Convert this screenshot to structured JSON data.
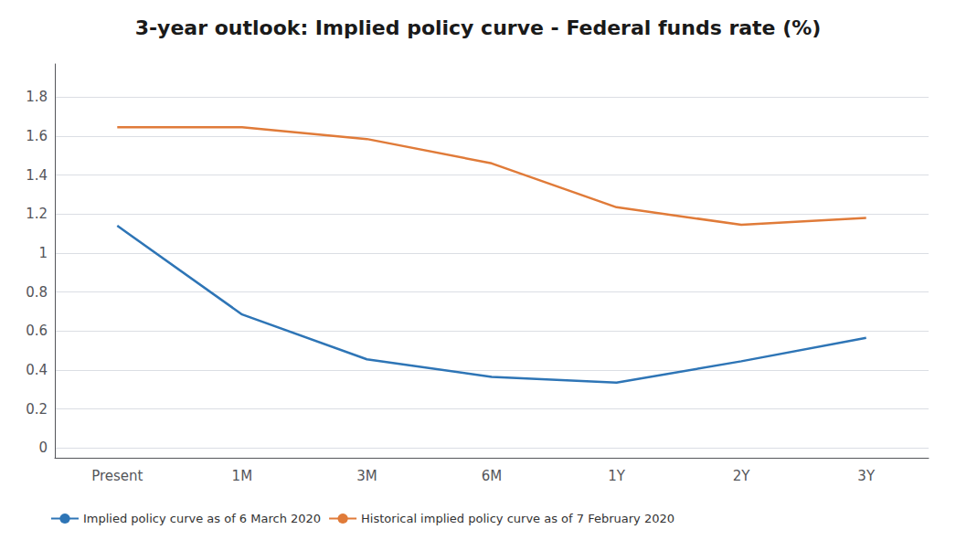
{
  "chart_data": {
    "type": "line",
    "title": "3-year outlook: Implied policy curve - Federal funds rate (%)",
    "categories": [
      "Present",
      "1M",
      "3M",
      "6M",
      "1Y",
      "2Y",
      "3Y"
    ],
    "series": [
      {
        "name": "Implied policy curve as of 6 March 2020",
        "color": "#2e75b6",
        "values": [
          1.14,
          0.685,
          0.455,
          0.365,
          0.335,
          0.445,
          0.565
        ]
      },
      {
        "name": "Historical implied policy curve as of 7 February 2020",
        "color": "#e07b39",
        "values": [
          1.645,
          1.645,
          1.585,
          1.46,
          1.235,
          1.145,
          1.18
        ]
      }
    ],
    "ylim": [
      -0.05,
      1.97
    ],
    "yticks": [
      0,
      0.2,
      0.4,
      0.6,
      0.8,
      1,
      1.2,
      1.4,
      1.6,
      1.8
    ],
    "grid": true,
    "legend": "bottom"
  }
}
